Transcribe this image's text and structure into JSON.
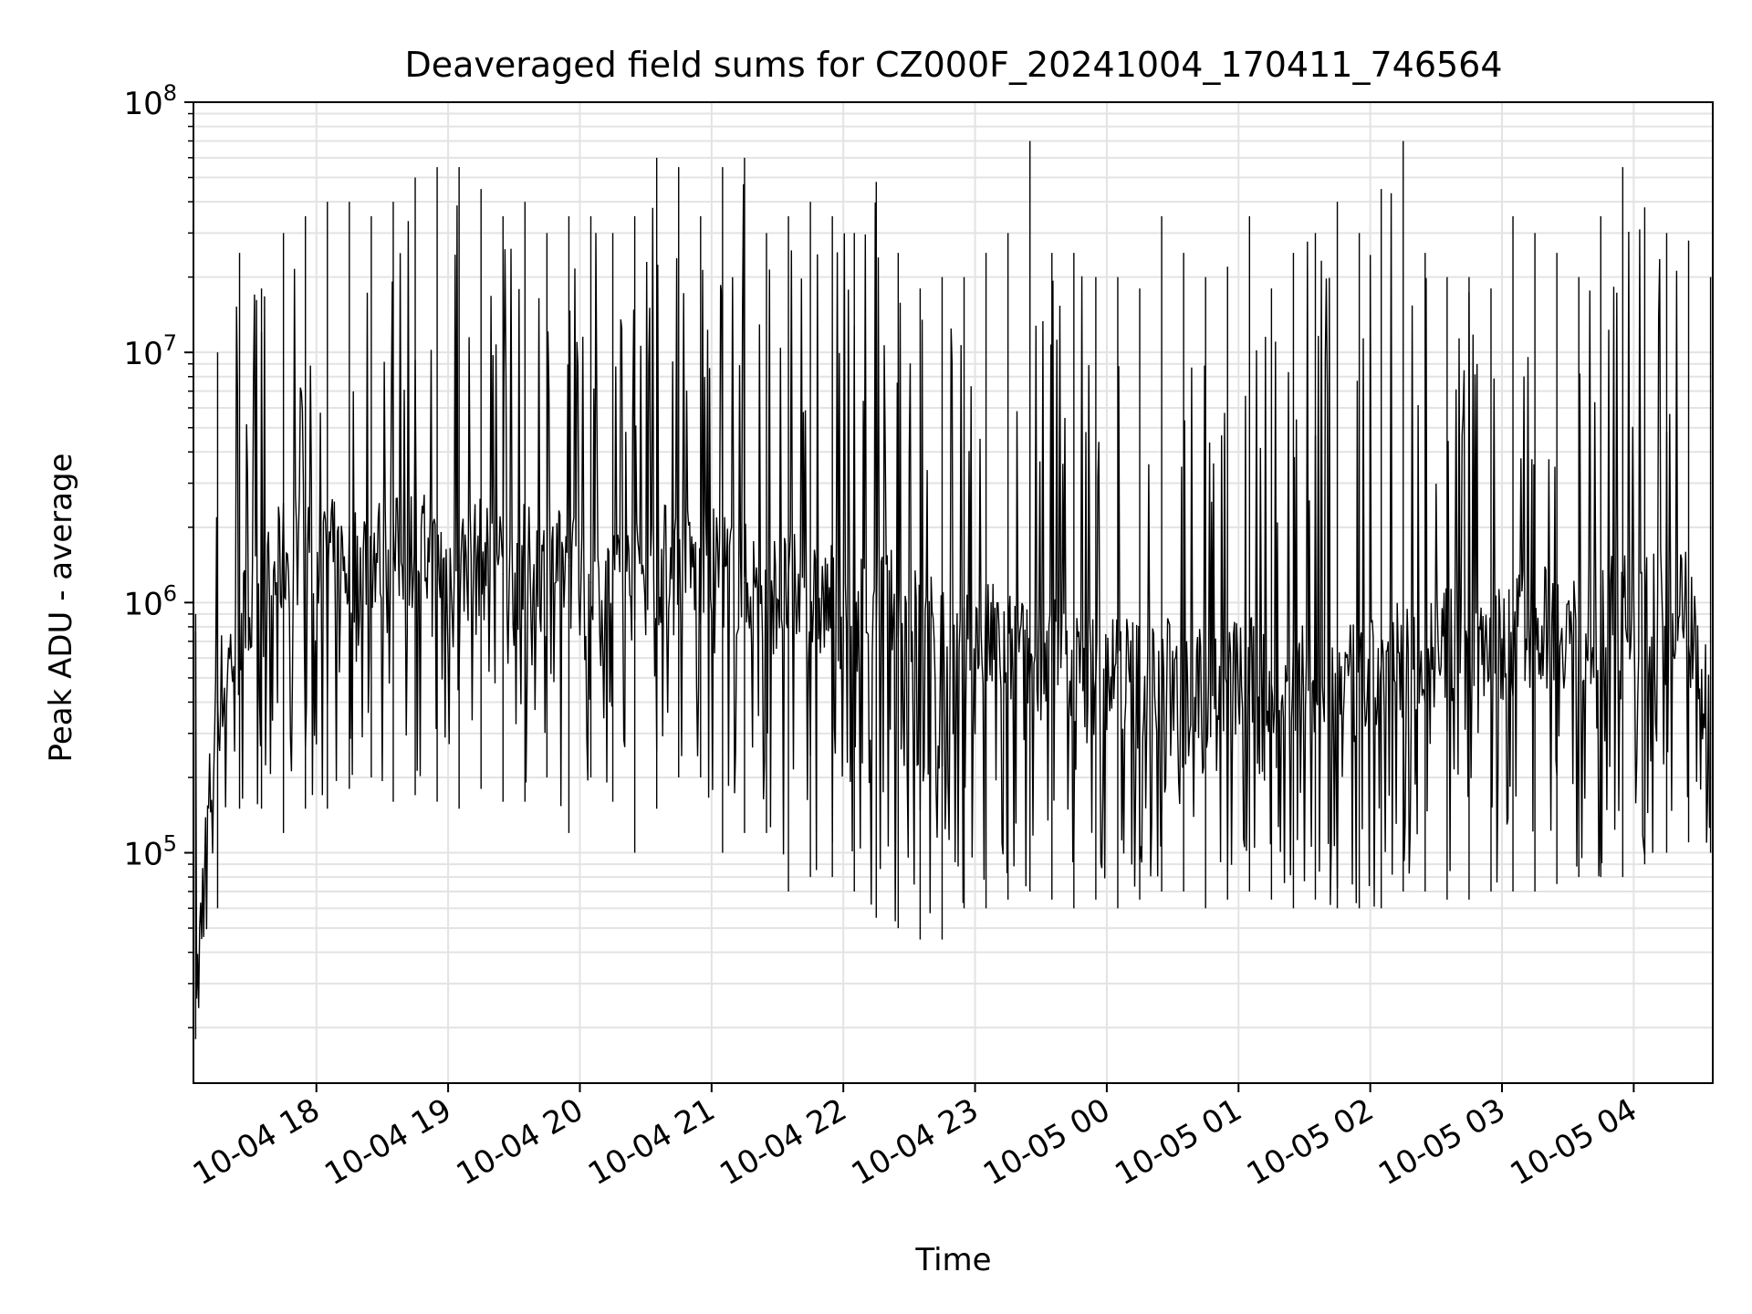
{
  "chart_data": {
    "type": "line",
    "title": "Deaveraged field sums for CZ000F_20241004_170411_746564",
    "xlabel": "Time",
    "ylabel": "Peak ADU - average",
    "y_scale": "log",
    "ylim": [
      12000,
      100000000
    ],
    "xlim": [
      "2024-10-04 17:04",
      "2024-10-05 04:36"
    ],
    "grid": true,
    "x_ticks": [
      "10-04 18",
      "10-04 19",
      "10-04 20",
      "10-04 21",
      "10-04 22",
      "10-04 23",
      "10-05 00",
      "10-05 01",
      "10-05 02",
      "10-05 03",
      "10-05 04"
    ],
    "y_ticks": [
      {
        "value": 100000,
        "base": "10",
        "exp": "5"
      },
      {
        "value": 1000000,
        "base": "10",
        "exp": "6"
      },
      {
        "value": 10000000,
        "base": "10",
        "exp": "7"
      },
      {
        "value": 100000000,
        "base": "10",
        "exp": "8"
      }
    ],
    "series": [
      {
        "color": "#000000",
        "x": [
          "2024-10-04 17:05",
          "2024-10-04 17:15",
          "2024-10-04 17:25",
          "2024-10-04 17:35",
          "2024-10-04 17:45",
          "2024-10-04 17:55",
          "2024-10-04 18:05",
          "2024-10-04 18:15",
          "2024-10-04 18:25",
          "2024-10-04 18:35",
          "2024-10-04 18:45",
          "2024-10-04 18:55",
          "2024-10-04 19:05",
          "2024-10-04 19:15",
          "2024-10-04 19:25",
          "2024-10-04 19:35",
          "2024-10-04 19:45",
          "2024-10-04 19:55",
          "2024-10-04 20:05",
          "2024-10-04 20:15",
          "2024-10-04 20:25",
          "2024-10-04 20:35",
          "2024-10-04 20:45",
          "2024-10-04 20:55",
          "2024-10-04 21:05",
          "2024-10-04 21:15",
          "2024-10-04 21:25",
          "2024-10-04 21:35",
          "2024-10-04 21:45",
          "2024-10-04 21:55",
          "2024-10-04 22:05",
          "2024-10-04 22:15",
          "2024-10-04 22:25",
          "2024-10-04 22:35",
          "2024-10-04 22:45",
          "2024-10-04 22:55",
          "2024-10-04 23:05",
          "2024-10-04 23:15",
          "2024-10-04 23:25",
          "2024-10-04 23:35",
          "2024-10-04 23:45",
          "2024-10-04 23:55",
          "2024-10-05 00:05",
          "2024-10-05 00:15",
          "2024-10-05 00:25",
          "2024-10-05 00:35",
          "2024-10-05 00:45",
          "2024-10-05 00:55",
          "2024-10-05 01:05",
          "2024-10-05 01:15",
          "2024-10-05 01:25",
          "2024-10-05 01:35",
          "2024-10-05 01:45",
          "2024-10-05 01:55",
          "2024-10-05 02:05",
          "2024-10-05 02:15",
          "2024-10-05 02:25",
          "2024-10-05 02:35",
          "2024-10-05 02:45",
          "2024-10-05 02:55",
          "2024-10-05 03:05",
          "2024-10-05 03:15",
          "2024-10-05 03:25",
          "2024-10-05 03:35",
          "2024-10-05 03:45",
          "2024-10-05 03:55",
          "2024-10-05 04:05",
          "2024-10-05 04:15",
          "2024-10-05 04:25",
          "2024-10-05 04:35"
        ],
        "y": [
          30000,
          400000,
          800000,
          1000000,
          1500000,
          1800000,
          1500000,
          1400000,
          1600000,
          1500000,
          1700000,
          1400000,
          1400000,
          1500000,
          1300000,
          1400000,
          1300000,
          1400000,
          1200000,
          1300000,
          1200000,
          1400000,
          1500000,
          1300000,
          1400000,
          1200000,
          1100000,
          1100000,
          1000000,
          1000000,
          900000,
          1000000,
          900000,
          800000,
          700000,
          600000,
          700000,
          650000,
          600000,
          600000,
          550000,
          500000,
          550000,
          500000,
          500000,
          500000,
          450000,
          500000,
          500000,
          450000,
          500000,
          450000,
          500000,
          450000,
          550000,
          600000,
          600000,
          650000,
          700000,
          700000,
          750000,
          800000,
          800000,
          800000,
          850000,
          900000,
          900000,
          950000,
          1000000,
          300000
        ],
        "y_min": [
          18000,
          60000,
          150000,
          150000,
          120000,
          150000,
          150000,
          180000,
          200000,
          160000,
          170000,
          160000,
          150000,
          180000,
          160000,
          160000,
          200000,
          120000,
          200000,
          160000,
          100000,
          150000,
          200000,
          200000,
          100000,
          120000,
          120000,
          70000,
          80000,
          80000,
          70000,
          55000,
          50000,
          45000,
          45000,
          60000,
          60000,
          65000,
          70000,
          65000,
          60000,
          65000,
          60000,
          65000,
          70000,
          70000,
          60000,
          65000,
          70000,
          65000,
          60000,
          65000,
          60000,
          60000,
          60000,
          70000,
          70000,
          65000,
          65000,
          70000,
          70000,
          70000,
          75000,
          80000,
          80000,
          80000,
          90000,
          100000,
          110000,
          100000
        ],
        "y_max": [
          900000,
          10000000,
          25000000,
          18000000,
          30000000,
          35000000,
          40000000,
          40000000,
          35000000,
          40000000,
          50000000,
          55000000,
          55000000,
          45000000,
          35000000,
          40000000,
          30000000,
          35000000,
          35000000,
          30000000,
          35000000,
          60000000,
          55000000,
          35000000,
          55000000,
          60000000,
          30000000,
          35000000,
          40000000,
          35000000,
          30000000,
          48000000,
          25000000,
          18000000,
          20000000,
          20000000,
          25000000,
          30000000,
          70000000,
          25000000,
          25000000,
          20000000,
          20000000,
          18000000,
          35000000,
          25000000,
          20000000,
          22000000,
          35000000,
          18000000,
          25000000,
          30000000,
          40000000,
          30000000,
          45000000,
          70000000,
          25000000,
          20000000,
          20000000,
          18000000,
          35000000,
          30000000,
          25000000,
          20000000,
          35000000,
          55000000,
          38000000,
          30000000,
          28000000,
          20000000
        ]
      }
    ]
  }
}
